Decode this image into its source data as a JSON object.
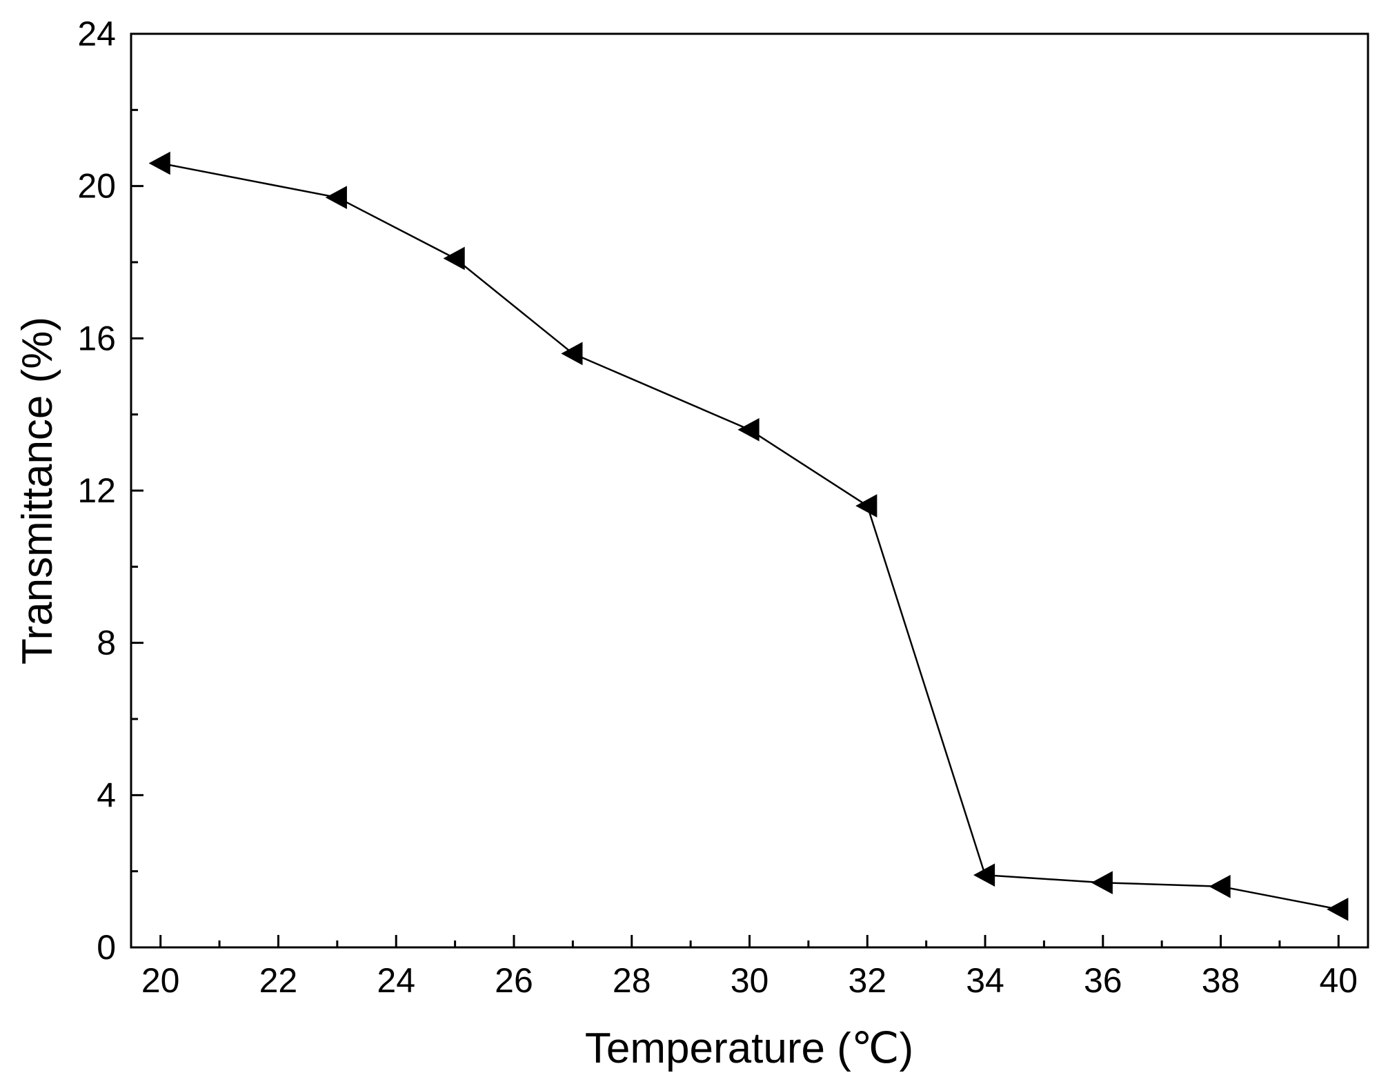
{
  "chart_data": {
    "type": "line",
    "xlabel": "Temperature (℃)",
    "ylabel": "Transmittance (%)",
    "xlim": [
      19.5,
      40.5
    ],
    "ylim": [
      0,
      24
    ],
    "x_ticks": [
      20,
      22,
      24,
      26,
      28,
      30,
      32,
      34,
      36,
      38,
      40
    ],
    "y_ticks": [
      0,
      4,
      8,
      12,
      16,
      20,
      24
    ],
    "grid": false,
    "legend": "none",
    "marker": "left-pointing triangle",
    "colors": {
      "line": "#000000",
      "marker": "#000000",
      "frame": "#000000",
      "background": "#ffffff"
    },
    "series": [
      {
        "x": [
          20,
          23,
          25,
          27,
          30,
          32,
          34,
          36,
          38,
          40
        ],
        "values": [
          20.6,
          19.7,
          18.1,
          15.6,
          13.6,
          11.6,
          1.9,
          1.7,
          1.6,
          1.0
        ]
      }
    ]
  }
}
